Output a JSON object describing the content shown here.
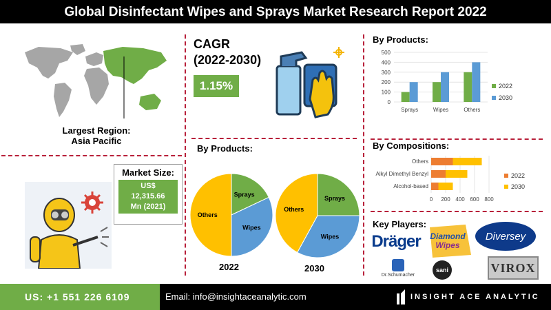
{
  "title": "Global Disinfectant Wipes and Sprays Market Research Report 2022",
  "region": {
    "label": "Largest Region:",
    "value": "Asia Pacific"
  },
  "cagr": {
    "label_line1": "CAGR",
    "label_line2": "(2022-2030)",
    "value": "1.15%"
  },
  "market_size": {
    "label": "Market Size:",
    "value_line1": "US$",
    "value_line2": "12,315.66",
    "value_line3": "Mn (2021)"
  },
  "sections": {
    "by_products": "By Products:",
    "by_compositions": "By Compositions:",
    "key_players": "Key Players:"
  },
  "colors": {
    "green": "#70ad47",
    "blue": "#5b9bd5",
    "orange": "#ed7d31",
    "yellow": "#ffc000",
    "divider": "#b8203a"
  },
  "chart_data": [
    {
      "type": "bar",
      "title": "By Products:",
      "categories": [
        "Sprays",
        "Wipes",
        "Others"
      ],
      "series": [
        {
          "name": "2022",
          "values": [
            100,
            200,
            300
          ],
          "color": "#70ad47"
        },
        {
          "name": "2030",
          "values": [
            200,
            300,
            400
          ],
          "color": "#5b9bd5"
        }
      ],
      "ylim": [
        0,
        500
      ],
      "yticks": [
        0,
        100,
        200,
        300,
        400,
        500
      ],
      "legend": "right"
    },
    {
      "type": "bar",
      "orientation": "horizontal",
      "stacked": true,
      "title": "By Compositions:",
      "categories": [
        "Others",
        "Alkyl Dimethyl Benzyl",
        "Alcohol-based"
      ],
      "series": [
        {
          "name": "2022",
          "values": [
            300,
            200,
            100
          ],
          "color": "#ed7d31"
        },
        {
          "name": "2030",
          "values": [
            400,
            300,
            200
          ],
          "color": "#ffc000"
        }
      ],
      "xlim": [
        0,
        800
      ],
      "xticks": [
        0,
        200,
        400,
        600,
        800
      ],
      "legend": "right"
    },
    {
      "type": "pie",
      "title": "By Products:",
      "label": "2022",
      "slices": [
        {
          "name": "Sprays",
          "value": 18,
          "color": "#70ad47"
        },
        {
          "name": "Wipes",
          "value": 32,
          "color": "#5b9bd5"
        },
        {
          "name": "Others",
          "value": 50,
          "color": "#ffc000"
        }
      ]
    },
    {
      "type": "pie",
      "label": "2030",
      "slices": [
        {
          "name": "Sprays",
          "value": 25,
          "color": "#70ad47"
        },
        {
          "name": "Wipes",
          "value": 33,
          "color": "#5b9bd5"
        },
        {
          "name": "Others",
          "value": 42,
          "color": "#ffc000"
        }
      ]
    }
  ],
  "players": {
    "drager": "Dräger",
    "diamond_line1": "Diamond",
    "diamond_line2": "Wipes",
    "diversey": "Diversey",
    "drschumacher": "Dr.Schumacher",
    "sani": "sani",
    "virox": "VIROX"
  },
  "footer": {
    "phone": "US: +1 551 226 6109",
    "email": "Email: info@insightaceanalytic.com",
    "brand": "INSIGHT ACE ANALYTIC"
  }
}
